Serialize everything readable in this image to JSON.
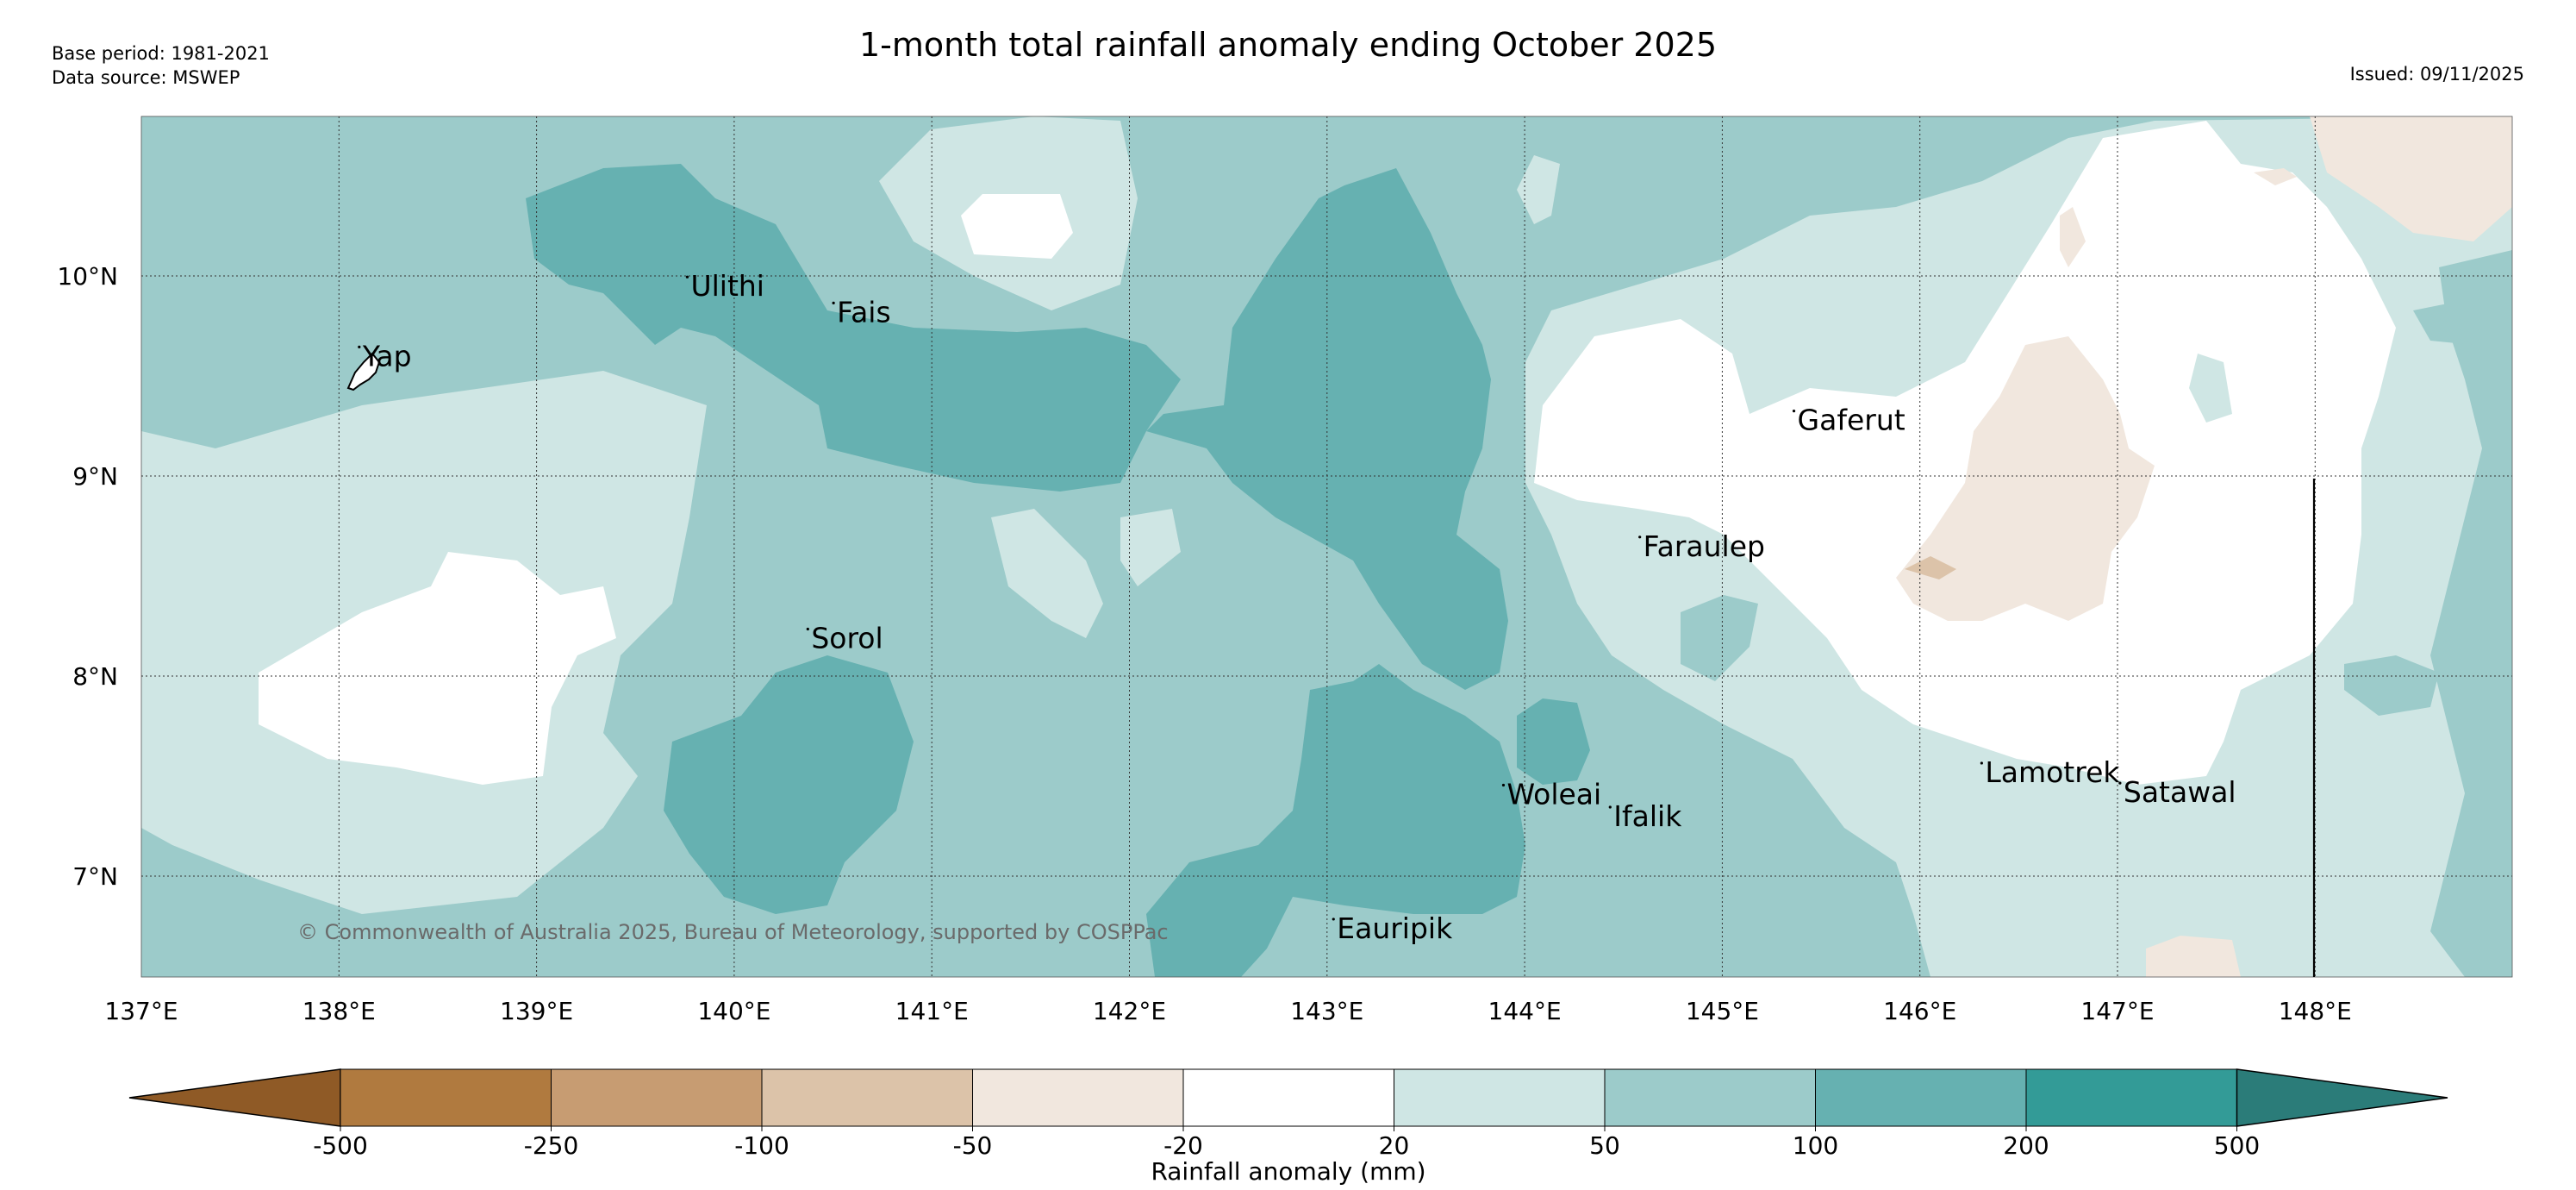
{
  "header": {
    "title": "1-month total rainfall anomaly ending October 2025",
    "base_period": "Base period: 1981-2021",
    "data_source": "Data source: MSWEP",
    "issued": "Issued: 09/11/2025"
  },
  "map": {
    "lon_labels": [
      "137°E",
      "138°E",
      "139°E",
      "140°E",
      "141°E",
      "142°E",
      "143°E",
      "144°E",
      "145°E",
      "146°E",
      "147°E",
      "148°E"
    ],
    "lat_labels": [
      "10°N",
      "9°N",
      "8°N",
      "7°N"
    ],
    "places": [
      {
        "name": "Ulithi",
        "lon": 139.78,
        "lat": 9.9
      },
      {
        "name": "Fais",
        "lon": 140.52,
        "lat": 9.77
      },
      {
        "name": "Yap",
        "lon": 138.12,
        "lat": 9.55
      },
      {
        "name": "Gaferut",
        "lon": 145.38,
        "lat": 9.23
      },
      {
        "name": "Faraulep",
        "lon": 144.6,
        "lat": 8.6
      },
      {
        "name": "Sorol",
        "lon": 140.39,
        "lat": 8.14
      },
      {
        "name": "Woleai",
        "lon": 143.91,
        "lat": 7.36
      },
      {
        "name": "Ifalik",
        "lon": 144.45,
        "lat": 7.25
      },
      {
        "name": "Lamotrek",
        "lon": 146.33,
        "lat": 7.47
      },
      {
        "name": "Satawal",
        "lon": 147.03,
        "lat": 7.37
      },
      {
        "name": "Eauripik",
        "lon": 143.05,
        "lat": 6.69
      }
    ],
    "copyright": "© Commonwealth of Australia 2025, Bureau of Meteorology, supported by COSPPac"
  },
  "colorbar": {
    "label": "Rainfall anomaly (mm)",
    "ticks": [
      "-500",
      "-250",
      "-100",
      "-50",
      "-20",
      "20",
      "50",
      "100",
      "200",
      "500"
    ],
    "colors": [
      "#8f5a26",
      "#b07a3f",
      "#c79c72",
      "#dcc3a9",
      "#f1e7de",
      "#ffffff",
      "#cfe6e4",
      "#9ccbca",
      "#66b1b1",
      "#339b97",
      "#2b7c79"
    ]
  },
  "chart_data": {
    "type": "heatmap",
    "title": "1-month total rainfall anomaly ending October 2025",
    "value_label": "Rainfall anomaly (mm)",
    "lon_range": [
      137,
      149
    ],
    "lat_range": [
      6.5,
      10.8
    ],
    "class_bounds": [
      -500,
      -250,
      -100,
      -50,
      -20,
      20,
      50,
      100,
      200,
      500
    ],
    "regions": [
      {
        "area": "around Yap, Ulithi and Fais",
        "anomaly_class": "20 to 200"
      },
      {
        "area": "central belt 142°E–144°E, 8°N–10.5°N",
        "anomaly_class": "100 to 200"
      },
      {
        "area": "around Sorol and south of Woleai",
        "anomaly_class": "100 to 200"
      },
      {
        "area": "near Gaferut and Lamotrek (145.5°E–147.5°E)",
        "anomaly_class": "-20 to 20"
      },
      {
        "area": "patches near 146.5°E, 8.5°N–9.5°N",
        "anomaly_class": "-50 to -20"
      },
      {
        "area": "north-east corner 148°E–149°E, 10.3°N–10.8°N",
        "anomaly_class": "-50 to -20"
      }
    ]
  }
}
